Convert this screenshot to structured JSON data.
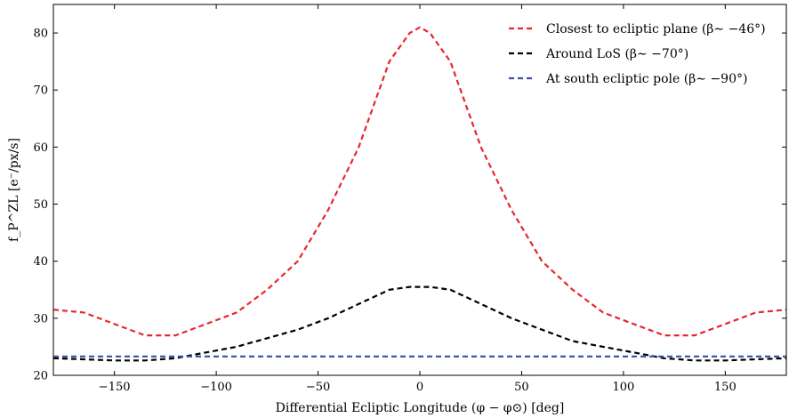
{
  "chart_data": {
    "type": "line",
    "xlabel": "Differential Ecliptic Longitude (φ − φ⊙) [deg]",
    "ylabel": "f_P^ZL [e⁻/px/s]",
    "xlim": [
      -180,
      180
    ],
    "ylim": [
      20,
      85
    ],
    "xticks": [
      -150,
      -100,
      -50,
      0,
      50,
      100,
      150
    ],
    "yticks": [
      20,
      30,
      40,
      50,
      60,
      70,
      80
    ],
    "grid": false,
    "legend_position": "top-right",
    "series": [
      {
        "name": "Closest to ecliptic plane (β∼ −46°)",
        "color": "#e8262b",
        "style": "dashed",
        "x": [
          -180,
          -165,
          -150,
          -135,
          -120,
          -105,
          -90,
          -75,
          -60,
          -45,
          -30,
          -15,
          -5,
          0,
          5,
          15,
          30,
          45,
          60,
          75,
          90,
          105,
          120,
          135,
          150,
          165,
          180
        ],
        "y": [
          31.5,
          31.0,
          29.0,
          27.0,
          27.0,
          29.0,
          31.0,
          35.0,
          40.0,
          49.0,
          60.0,
          75.0,
          80.0,
          81.0,
          80.0,
          75.0,
          60.0,
          49.0,
          40.0,
          35.0,
          31.0,
          29.0,
          27.0,
          27.0,
          29.0,
          31.0,
          31.5
        ]
      },
      {
        "name": "Around LoS (β∼ −70°)",
        "color": "#000000",
        "style": "dashed",
        "x": [
          -180,
          -165,
          -150,
          -135,
          -120,
          -105,
          -90,
          -75,
          -60,
          -45,
          -30,
          -15,
          -5,
          0,
          5,
          15,
          30,
          45,
          60,
          75,
          90,
          105,
          120,
          135,
          150,
          165,
          180
        ],
        "y": [
          23.0,
          22.8,
          22.6,
          22.6,
          23.0,
          24.0,
          25.0,
          26.5,
          28.0,
          30.0,
          32.5,
          35.0,
          35.5,
          35.5,
          35.5,
          35.0,
          32.5,
          30.0,
          28.0,
          26.0,
          25.0,
          24.0,
          23.0,
          22.6,
          22.6,
          22.8,
          23.0
        ]
      },
      {
        "name": "At south ecliptic pole (β∼ −90°)",
        "color": "#3b4ea8",
        "style": "dashed",
        "x": [
          -180,
          180
        ],
        "y": [
          23.3,
          23.3
        ]
      }
    ]
  }
}
